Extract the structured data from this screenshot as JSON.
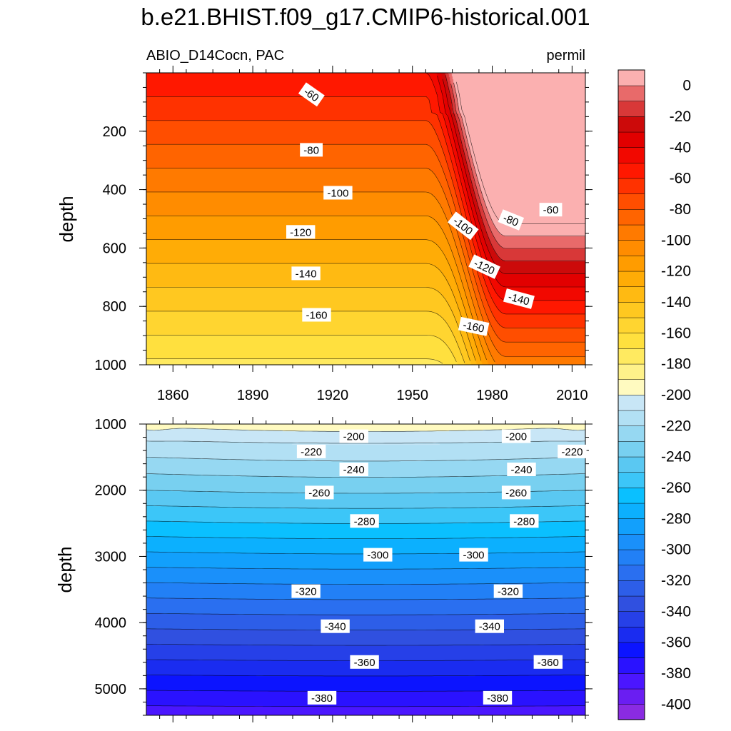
{
  "chart_data": {
    "type": "contour",
    "title": "b.e21.BHIST.f09_g17.CMIP6-historical.001",
    "variable_label": "ABIO_D14Cocn, PAC",
    "units_label": "permil",
    "x_tick_labels": [
      "1860",
      "1890",
      "1920",
      "1950",
      "1980",
      "2010"
    ],
    "x_ticks": [
      1860,
      1890,
      1920,
      1950,
      1980,
      2010
    ],
    "xlim": [
      1850,
      2015
    ],
    "panels": [
      {
        "name": "upper",
        "ylabel": "depth",
        "ylim": [
          0,
          1000
        ],
        "y_ticks": [
          200,
          400,
          600,
          800,
          1000
        ],
        "y_tick_labels": [
          "200",
          "400",
          "600",
          "800",
          "1000"
        ],
        "contour_labels": [
          {
            "text": "-60",
            "x": 1912,
            "y": 75,
            "angle": 35
          },
          {
            "text": "-80",
            "x": 1912,
            "y": 265,
            "angle": 0
          },
          {
            "text": "-100",
            "x": 1922,
            "y": 412,
            "angle": 0
          },
          {
            "text": "-120",
            "x": 1908,
            "y": 546,
            "angle": 0
          },
          {
            "text": "-140",
            "x": 1910,
            "y": 688,
            "angle": 0
          },
          {
            "text": "-160",
            "x": 1914,
            "y": 830,
            "angle": 0
          },
          {
            "text": "-60",
            "x": 2002,
            "y": 470,
            "angle": 0
          },
          {
            "text": "-80",
            "x": 1987,
            "y": 505,
            "angle": 22
          },
          {
            "text": "-100",
            "x": 1969,
            "y": 525,
            "angle": 38
          },
          {
            "text": "-120",
            "x": 1977,
            "y": 665,
            "angle": 25
          },
          {
            "text": "-140",
            "x": 1990,
            "y": 775,
            "angle": 15
          },
          {
            "text": "-160",
            "x": 1973,
            "y": 870,
            "angle": 12
          }
        ]
      },
      {
        "name": "lower",
        "ylabel": "depth",
        "ylim": [
          1000,
          5400
        ],
        "y_ticks": [
          1000,
          2000,
          3000,
          4000,
          5000
        ],
        "y_tick_labels": [
          "1000",
          "2000",
          "3000",
          "4000",
          "5000"
        ],
        "contour_labels": [
          {
            "text": "-200",
            "x": 1928,
            "y": 1190
          },
          {
            "text": "-200",
            "x": 1989,
            "y": 1190
          },
          {
            "text": "-220",
            "x": 1912,
            "y": 1420
          },
          {
            "text": "-220",
            "x": 2010,
            "y": 1420
          },
          {
            "text": "-240",
            "x": 1928,
            "y": 1690
          },
          {
            "text": "-240",
            "x": 1991,
            "y": 1690
          },
          {
            "text": "-260",
            "x": 1915,
            "y": 2040
          },
          {
            "text": "-260",
            "x": 1989,
            "y": 2040
          },
          {
            "text": "-280",
            "x": 1932,
            "y": 2470
          },
          {
            "text": "-280",
            "x": 1992,
            "y": 2470
          },
          {
            "text": "-300",
            "x": 1937,
            "y": 2980
          },
          {
            "text": "-300",
            "x": 1973,
            "y": 2980
          },
          {
            "text": "-320",
            "x": 1910,
            "y": 3530
          },
          {
            "text": "-320",
            "x": 1986,
            "y": 3530
          },
          {
            "text": "-340",
            "x": 1921,
            "y": 4060
          },
          {
            "text": "-340",
            "x": 1979,
            "y": 4060
          },
          {
            "text": "-360",
            "x": 1932,
            "y": 4600
          },
          {
            "text": "-360",
            "x": 2001,
            "y": 4600
          },
          {
            "text": "-380",
            "x": 1916,
            "y": 5140
          },
          {
            "text": "-380",
            "x": 1982,
            "y": 5140
          }
        ]
      }
    ],
    "colorbar": {
      "levels_low_to_high": [
        -410,
        -400,
        -390,
        -380,
        -370,
        -360,
        -350,
        -340,
        -330,
        -320,
        -310,
        -300,
        -290,
        -280,
        -270,
        -260,
        -250,
        -240,
        -230,
        -220,
        -210,
        -200,
        -190,
        -180,
        -170,
        -160,
        -150,
        -140,
        -130,
        -120,
        -110,
        -100,
        -90,
        -80,
        -70,
        -60,
        -50,
        -40,
        -30,
        -20,
        -10,
        0,
        10
      ],
      "colors_low_to_high": [
        "#8a2be2",
        "#6a1ef2",
        "#4b16ff",
        "#2a12ff",
        "#0c14ff",
        "#1a2cf0",
        "#2640e8",
        "#3050e0",
        "#2d5ee8",
        "#2a6ff0",
        "#2280f6",
        "#1a90fa",
        "#12a0fc",
        "#0cb0fe",
        "#0ac0ff",
        "#3cc6f8",
        "#5ac8f2",
        "#78d0f0",
        "#96d8f2",
        "#b2e0f4",
        "#c8e6f6",
        "#fffac0",
        "#fff28a",
        "#ffea60",
        "#ffe03e",
        "#ffd530",
        "#ffc820",
        "#ffba12",
        "#ffac06",
        "#ff9c00",
        "#ff8c00",
        "#ff7a00",
        "#ff6400",
        "#ff4e00",
        "#ff3200",
        "#ff1800",
        "#f20800",
        "#e20000",
        "#cc0a0a",
        "#d83838",
        "#e86a6a",
        "#fbb0b0"
      ],
      "labels": [
        "0",
        "-20",
        "-40",
        "-60",
        "-80",
        "-100",
        "-120",
        "-140",
        "-160",
        "-180",
        "-200",
        "-220",
        "-240",
        "-260",
        "-280",
        "-300",
        "-320",
        "-340",
        "-360",
        "-380",
        "-400"
      ]
    }
  }
}
